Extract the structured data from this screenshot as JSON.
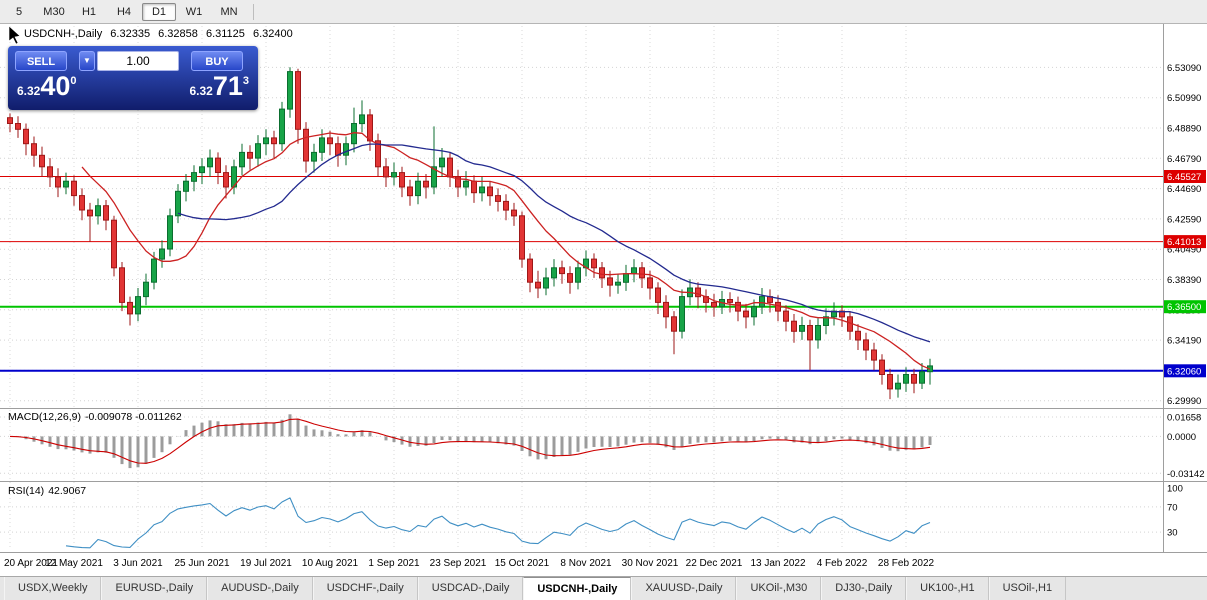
{
  "toolbar": {
    "timeframes": [
      "5",
      "M30",
      "H1",
      "H4",
      "D1",
      "W1",
      "MN"
    ],
    "active": "D1"
  },
  "chart_header": {
    "symbol_title": "USDCNH-,Daily",
    "open": "6.32335",
    "high": "6.32858",
    "low": "6.31125",
    "close": "6.32400"
  },
  "trade_panel": {
    "sell_label": "SELL",
    "buy_label": "BUY",
    "volume": "1.00",
    "sell_price_small": "6.32",
    "sell_price_big": "40",
    "sell_price_sup": "0",
    "buy_price_small": "6.32",
    "buy_price_big": "71",
    "buy_price_sup": "3"
  },
  "price_axis": {
    "ticks": [
      "6.53090",
      "6.50990",
      "6.48890",
      "6.46790",
      "6.44690",
      "6.42590",
      "6.40490",
      "6.38390",
      "6.36290",
      "6.34190",
      "6.32090",
      "6.29990"
    ]
  },
  "hlines": [
    {
      "price": 6.45527,
      "label": "6.45527",
      "color": "#dd0000",
      "width": 1
    },
    {
      "price": 6.41013,
      "label": "6.41013",
      "color": "#dd0000",
      "width": 1
    },
    {
      "price": 6.365,
      "label": "6.36500",
      "color": "#00c400",
      "width": 2
    },
    {
      "price": 6.3206,
      "label": "6.32060",
      "color": "#0000cc",
      "width": 2
    }
  ],
  "macd": {
    "label": "MACD(12,26,9)",
    "values": "-0.009078 -0.011262",
    "axis": [
      "0.01658",
      "0.0000",
      "-0.03142"
    ],
    "axis_values": [
      0.01658,
      0.0,
      -0.03142
    ]
  },
  "rsi": {
    "label": "RSI(14)",
    "value": "42.9067",
    "axis": [
      "100",
      "70",
      "30"
    ],
    "axis_values": [
      100,
      70,
      30
    ]
  },
  "tabs": {
    "items": [
      "USDX,Weekly",
      "EURUSD-,Daily",
      "AUDUSD-,Daily",
      "USDCHF-,Daily",
      "USDCAD-,Daily",
      "USDCNH-,Daily",
      "XAUUSD-,Daily",
      "UKOil-,M30",
      "DJ30-,Daily",
      "UK100-,H1",
      "USOil-,H1"
    ],
    "active": "USDCNH-,Daily"
  },
  "chart_data": {
    "type": "candlestick",
    "symbol": "USDCNH-",
    "timeframe": "Daily",
    "ylim": [
      6.2962,
      6.5582
    ],
    "x_labels": [
      "20 Apr 2021",
      "12 May 2021",
      "3 Jun 2021",
      "25 Jun 2021",
      "19 Jul 2021",
      "10 Aug 2021",
      "1 Sep 2021",
      "23 Sep 2021",
      "15 Oct 2021",
      "8 Nov 2021",
      "30 Nov 2021",
      "22 Dec 2021",
      "13 Jan 2022",
      "4 Feb 2022",
      "28 Feb 2022"
    ],
    "colors": {
      "up": "#18a448",
      "up_border": "#0b6e2f",
      "down": "#e23535",
      "down_border": "#9e1717",
      "ma_fast": "#cc2222",
      "ma_slow": "#232a8f",
      "macd_hist": "#9c9c9c",
      "macd_signal": "#cc0000",
      "rsi_line": "#3f8fc4"
    },
    "moving_averages": [
      {
        "color": "#cc2222",
        "period": 10
      },
      {
        "color": "#232a8f",
        "period": 22
      }
    ],
    "candles": [
      [
        6.496,
        6.499,
        6.486,
        6.492
      ],
      [
        6.492,
        6.497,
        6.482,
        6.488
      ],
      [
        6.488,
        6.492,
        6.47,
        6.478
      ],
      [
        6.478,
        6.483,
        6.462,
        6.47
      ],
      [
        6.47,
        6.476,
        6.455,
        6.462
      ],
      [
        6.462,
        6.468,
        6.448,
        6.455
      ],
      [
        6.455,
        6.461,
        6.441,
        6.448
      ],
      [
        6.448,
        6.458,
        6.443,
        6.452
      ],
      [
        6.452,
        6.456,
        6.435,
        6.442
      ],
      [
        6.442,
        6.447,
        6.425,
        6.432
      ],
      [
        6.432,
        6.437,
        6.41,
        6.428
      ],
      [
        6.428,
        6.44,
        6.422,
        6.435
      ],
      [
        6.435,
        6.439,
        6.418,
        6.425
      ],
      [
        6.425,
        6.428,
        6.386,
        6.392
      ],
      [
        6.392,
        6.396,
        6.362,
        6.368
      ],
      [
        6.368,
        6.372,
        6.352,
        6.36
      ],
      [
        6.36,
        6.378,
        6.355,
        6.372
      ],
      [
        6.372,
        6.388,
        6.366,
        6.382
      ],
      [
        6.382,
        6.403,
        6.377,
        6.398
      ],
      [
        6.398,
        6.411,
        6.392,
        6.405
      ],
      [
        6.405,
        6.433,
        6.4,
        6.428
      ],
      [
        6.428,
        6.45,
        6.423,
        6.445
      ],
      [
        6.445,
        6.457,
        6.438,
        6.452
      ],
      [
        6.452,
        6.463,
        6.445,
        6.458
      ],
      [
        6.458,
        6.468,
        6.45,
        6.462
      ],
      [
        6.462,
        6.474,
        6.455,
        6.468
      ],
      [
        6.468,
        6.472,
        6.45,
        6.458
      ],
      [
        6.458,
        6.463,
        6.44,
        6.448
      ],
      [
        6.448,
        6.467,
        6.443,
        6.462
      ],
      [
        6.462,
        6.478,
        6.456,
        6.472
      ],
      [
        6.472,
        6.477,
        6.46,
        6.468
      ],
      [
        6.468,
        6.484,
        6.462,
        6.478
      ],
      [
        6.478,
        6.488,
        6.47,
        6.482
      ],
      [
        6.482,
        6.487,
        6.468,
        6.478
      ],
      [
        6.478,
        6.507,
        6.473,
        6.502
      ],
      [
        6.502,
        6.531,
        6.496,
        6.528
      ],
      [
        6.528,
        6.53,
        6.478,
        6.488
      ],
      [
        6.488,
        6.493,
        6.458,
        6.466
      ],
      [
        6.466,
        6.478,
        6.458,
        6.472
      ],
      [
        6.472,
        6.488,
        6.466,
        6.482
      ],
      [
        6.482,
        6.487,
        6.47,
        6.478
      ],
      [
        6.478,
        6.483,
        6.462,
        6.47
      ],
      [
        6.47,
        6.483,
        6.463,
        6.478
      ],
      [
        6.478,
        6.503,
        6.472,
        6.492
      ],
      [
        6.492,
        6.508,
        6.486,
        6.498
      ],
      [
        6.498,
        6.502,
        6.473,
        6.48
      ],
      [
        6.48,
        6.485,
        6.455,
        6.462
      ],
      [
        6.462,
        6.468,
        6.448,
        6.455
      ],
      [
        6.455,
        6.465,
        6.449,
        6.458
      ],
      [
        6.458,
        6.462,
        6.441,
        6.448
      ],
      [
        6.448,
        6.453,
        6.435,
        6.442
      ],
      [
        6.442,
        6.458,
        6.436,
        6.452
      ],
      [
        6.452,
        6.457,
        6.44,
        6.448
      ],
      [
        6.448,
        6.49,
        6.443,
        6.462
      ],
      [
        6.462,
        6.475,
        6.455,
        6.468
      ],
      [
        6.468,
        6.472,
        6.448,
        6.455
      ],
      [
        6.455,
        6.46,
        6.441,
        6.448
      ],
      [
        6.448,
        6.459,
        6.442,
        6.452
      ],
      [
        6.452,
        6.456,
        6.437,
        6.444
      ],
      [
        6.444,
        6.455,
        6.438,
        6.448
      ],
      [
        6.448,
        6.452,
        6.435,
        6.442
      ],
      [
        6.442,
        6.447,
        6.431,
        6.438
      ],
      [
        6.438,
        6.443,
        6.425,
        6.432
      ],
      [
        6.432,
        6.437,
        6.421,
        6.428
      ],
      [
        6.428,
        6.431,
        6.392,
        6.398
      ],
      [
        6.398,
        6.402,
        6.375,
        6.382
      ],
      [
        6.382,
        6.39,
        6.371,
        6.378
      ],
      [
        6.378,
        6.392,
        6.373,
        6.385
      ],
      [
        6.385,
        6.398,
        6.379,
        6.392
      ],
      [
        6.392,
        6.397,
        6.381,
        6.388
      ],
      [
        6.388,
        6.393,
        6.374,
        6.382
      ],
      [
        6.382,
        6.397,
        6.377,
        6.392
      ],
      [
        6.392,
        6.404,
        6.386,
        6.398
      ],
      [
        6.398,
        6.402,
        6.385,
        6.392
      ],
      [
        6.392,
        6.396,
        6.378,
        6.385
      ],
      [
        6.385,
        6.39,
        6.372,
        6.38
      ],
      [
        6.38,
        6.388,
        6.374,
        6.382
      ],
      [
        6.382,
        6.394,
        6.376,
        6.388
      ],
      [
        6.388,
        6.398,
        6.382,
        6.392
      ],
      [
        6.392,
        6.396,
        6.378,
        6.385
      ],
      [
        6.385,
        6.39,
        6.37,
        6.378
      ],
      [
        6.378,
        6.382,
        6.36,
        6.368
      ],
      [
        6.368,
        6.373,
        6.35,
        6.358
      ],
      [
        6.358,
        6.362,
        6.332,
        6.348
      ],
      [
        6.348,
        6.377,
        6.343,
        6.372
      ],
      [
        6.372,
        6.384,
        6.366,
        6.378
      ],
      [
        6.378,
        6.382,
        6.364,
        6.372
      ],
      [
        6.372,
        6.377,
        6.361,
        6.368
      ],
      [
        6.368,
        6.374,
        6.358,
        6.365
      ],
      [
        6.365,
        6.376,
        6.36,
        6.37
      ],
      [
        6.37,
        6.375,
        6.361,
        6.368
      ],
      [
        6.368,
        6.372,
        6.355,
        6.362
      ],
      [
        6.362,
        6.367,
        6.35,
        6.358
      ],
      [
        6.358,
        6.37,
        6.352,
        6.365
      ],
      [
        6.365,
        6.378,
        6.36,
        6.372
      ],
      [
        6.372,
        6.377,
        6.361,
        6.368
      ],
      [
        6.368,
        6.373,
        6.355,
        6.362
      ],
      [
        6.362,
        6.366,
        6.348,
        6.355
      ],
      [
        6.355,
        6.36,
        6.34,
        6.348
      ],
      [
        6.348,
        6.358,
        6.342,
        6.352
      ],
      [
        6.352,
        6.356,
        6.321,
        6.342
      ],
      [
        6.342,
        6.357,
        6.336,
        6.352
      ],
      [
        6.352,
        6.364,
        6.346,
        6.358
      ],
      [
        6.358,
        6.368,
        6.352,
        6.362
      ],
      [
        6.362,
        6.366,
        6.351,
        6.358
      ],
      [
        6.358,
        6.362,
        6.342,
        6.348
      ],
      [
        6.348,
        6.353,
        6.335,
        6.342
      ],
      [
        6.342,
        6.347,
        6.328,
        6.335
      ],
      [
        6.335,
        6.34,
        6.321,
        6.328
      ],
      [
        6.328,
        6.332,
        6.311,
        6.318
      ],
      [
        6.318,
        6.322,
        6.301,
        6.308
      ],
      [
        6.308,
        6.318,
        6.302,
        6.312
      ],
      [
        6.312,
        6.323,
        6.306,
        6.318
      ],
      [
        6.318,
        6.322,
        6.305,
        6.312
      ],
      [
        6.312,
        6.326,
        6.308,
        6.32
      ],
      [
        6.32,
        6.329,
        6.311,
        6.324
      ]
    ]
  }
}
